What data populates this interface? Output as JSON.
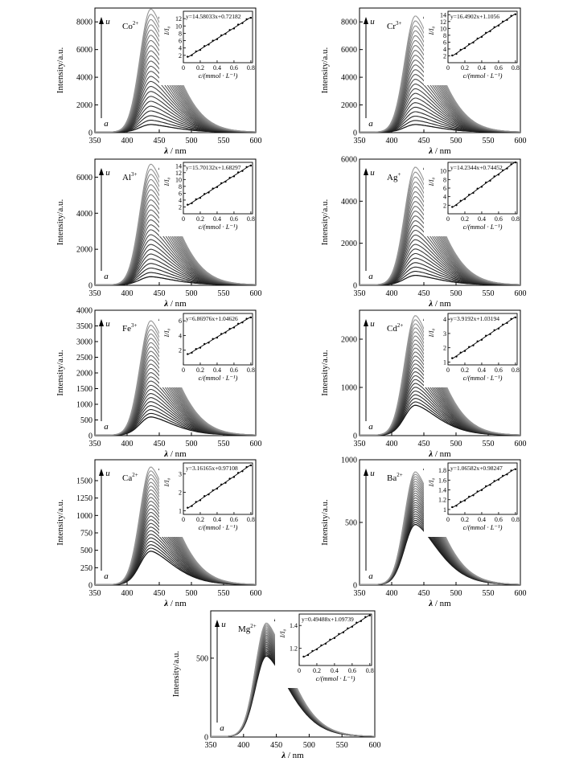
{
  "chart_data": [
    {
      "type": "line",
      "ion": "Co",
      "charge": "2+",
      "xlabel_symbol": "λ",
      "xlabel_unit": "/ nm",
      "ylabel": "Intensity/a.u.",
      "xlim": [
        350,
        600
      ],
      "ylim": [
        0,
        9000
      ],
      "xticks": [
        350,
        400,
        450,
        500,
        550,
        600
      ],
      "yticks": [
        0,
        2000,
        4000,
        6000,
        8000
      ],
      "peak_x": 437,
      "curve_count": 24,
      "first_peak": 550,
      "last_peak": 8900,
      "label_start": "a",
      "label_end": "u",
      "inset": {
        "equation": "y=14.58033x+0.72182",
        "slope": 14.58033,
        "intercept": 0.72182,
        "xlabel": "c/(mmol · L⁻¹)",
        "ylabel": "I/I₀",
        "xlim": [
          0,
          0.82
        ],
        "ylim": [
          0,
          14
        ],
        "xticks": [
          0,
          0.2,
          0.4,
          0.6,
          0.8
        ],
        "yticks": [
          2,
          4,
          6,
          8,
          10,
          12
        ],
        "x": [
          0.05,
          0.1,
          0.15,
          0.2,
          0.25,
          0.3,
          0.35,
          0.4,
          0.45,
          0.5,
          0.55,
          0.6,
          0.65,
          0.7,
          0.75,
          0.8
        ]
      }
    },
    {
      "type": "line",
      "ion": "Cr",
      "charge": "3+",
      "xlabel_symbol": "λ",
      "xlabel_unit": "/ nm",
      "ylabel": "Intensity/a.u.",
      "xlim": [
        350,
        600
      ],
      "ylim": [
        0,
        9000
      ],
      "xticks": [
        350,
        400,
        450,
        500,
        550,
        600
      ],
      "yticks": [
        0,
        2000,
        4000,
        6000,
        8000
      ],
      "peak_x": 437,
      "curve_count": 24,
      "first_peak": 550,
      "last_peak": 8400,
      "label_start": "a",
      "label_end": "u",
      "inset": {
        "equation": "y=16.4902x+1.1056",
        "slope": 16.4902,
        "intercept": 1.1056,
        "xlabel": "c/(mmol · L⁻¹)",
        "ylabel": "I/I₀",
        "xlim": [
          0,
          0.82
        ],
        "ylim": [
          0,
          15
        ],
        "xticks": [
          0,
          0.2,
          0.4,
          0.6,
          0.8
        ],
        "yticks": [
          2,
          4,
          6,
          8,
          10,
          12,
          14
        ],
        "x": [
          0.05,
          0.1,
          0.15,
          0.2,
          0.25,
          0.3,
          0.35,
          0.4,
          0.45,
          0.5,
          0.55,
          0.6,
          0.65,
          0.7,
          0.75,
          0.8
        ]
      }
    },
    {
      "type": "line",
      "ion": "Al",
      "charge": "3+",
      "xlabel_symbol": "λ",
      "xlabel_unit": "/ nm",
      "ylabel": "Intensity/a.u.",
      "xlim": [
        350,
        600
      ],
      "ylim": [
        0,
        7000
      ],
      "xticks": [
        350,
        400,
        450,
        500,
        550,
        600
      ],
      "yticks": [
        0,
        2000,
        4000,
        6000
      ],
      "peak_x": 437,
      "curve_count": 24,
      "first_peak": 450,
      "last_peak": 6700,
      "label_start": "a",
      "label_end": "u",
      "inset": {
        "equation": "y=15.70132x+1.68297",
        "slope": 15.70132,
        "intercept": 1.68297,
        "xlabel": "c/(mmol · L⁻¹)",
        "ylabel": "I/I₀",
        "xlim": [
          0,
          0.82
        ],
        "ylim": [
          0,
          15
        ],
        "xticks": [
          0,
          0.2,
          0.4,
          0.6,
          0.8
        ],
        "yticks": [
          2,
          4,
          6,
          8,
          10,
          12,
          14
        ],
        "x": [
          0.05,
          0.1,
          0.15,
          0.2,
          0.25,
          0.3,
          0.35,
          0.4,
          0.45,
          0.5,
          0.55,
          0.6,
          0.65,
          0.7,
          0.75,
          0.8
        ]
      }
    },
    {
      "type": "line",
      "ion": "Ag",
      "charge": "+",
      "xlabel_symbol": "λ",
      "xlabel_unit": "/ nm",
      "ylabel": "Intensity/a.u.",
      "xlim": [
        350,
        600
      ],
      "ylim": [
        0,
        6000
      ],
      "xticks": [
        350,
        400,
        450,
        500,
        550,
        600
      ],
      "yticks": [
        0,
        2000,
        4000,
        6000
      ],
      "peak_x": 437,
      "curve_count": 24,
      "first_peak": 450,
      "last_peak": 5600,
      "label_start": "a",
      "label_end": "u",
      "inset": {
        "equation": "y=14.2344x+0.74452",
        "slope": 14.2344,
        "intercept": 0.74452,
        "xlabel": "c/(mmol · L⁻¹)",
        "ylabel": "I/I₀",
        "xlim": [
          0,
          0.82
        ],
        "ylim": [
          0,
          12
        ],
        "xticks": [
          0,
          0.2,
          0.4,
          0.6,
          0.8
        ],
        "yticks": [
          2,
          4,
          6,
          8,
          10
        ],
        "x": [
          0.05,
          0.1,
          0.15,
          0.2,
          0.25,
          0.3,
          0.35,
          0.4,
          0.45,
          0.5,
          0.55,
          0.6,
          0.65,
          0.7,
          0.75,
          0.8
        ]
      }
    },
    {
      "type": "line",
      "ion": "Fe",
      "charge": "3+",
      "xlabel_symbol": "λ",
      "xlabel_unit": "/ nm",
      "ylabel": "Intensity/a.u.",
      "xlim": [
        350,
        600
      ],
      "ylim": [
        0,
        4000
      ],
      "xticks": [
        350,
        400,
        450,
        500,
        550,
        600
      ],
      "yticks": [
        0,
        500,
        1000,
        1500,
        2000,
        2500,
        3000,
        3500,
        4000
      ],
      "peak_x": 437,
      "curve_count": 24,
      "first_peak": 580,
      "last_peak": 3650,
      "label_start": "a",
      "label_end": "u",
      "inset": {
        "equation": "y=6.86976x+1.04626",
        "slope": 6.86976,
        "intercept": 1.04626,
        "xlabel": "c/(mmol · L⁻¹)",
        "ylabel": "I/I₀",
        "xlim": [
          0,
          0.82
        ],
        "ylim": [
          0,
          7
        ],
        "xticks": [
          0,
          0.2,
          0.4,
          0.6,
          0.8
        ],
        "yticks": [
          2,
          4,
          6
        ],
        "x": [
          0.05,
          0.1,
          0.15,
          0.2,
          0.25,
          0.3,
          0.35,
          0.4,
          0.45,
          0.5,
          0.55,
          0.6,
          0.65,
          0.7,
          0.75,
          0.8
        ]
      }
    },
    {
      "type": "line",
      "ion": "Cd",
      "charge": "2+",
      "xlabel_symbol": "λ",
      "xlabel_unit": "/ nm",
      "ylabel": "Intensity/a.u.",
      "xlim": [
        350,
        600
      ],
      "ylim": [
        0,
        2600
      ],
      "xticks": [
        350,
        400,
        450,
        500,
        550,
        600
      ],
      "yticks": [
        0,
        1000,
        2000
      ],
      "peak_x": 437,
      "curve_count": 24,
      "first_peak": 620,
      "last_peak": 2480,
      "label_start": "a",
      "label_end": "u",
      "inset": {
        "equation": "y=3.9192x+1.03194",
        "slope": 3.9192,
        "intercept": 1.03194,
        "xlabel": "c/(mmol · L⁻¹)",
        "ylabel": "I/I₀",
        "xlim": [
          0,
          0.82
        ],
        "ylim": [
          0.8,
          4.4
        ],
        "xticks": [
          0,
          0.2,
          0.4,
          0.6,
          0.8
        ],
        "yticks": [
          1,
          2,
          3,
          4
        ],
        "x": [
          0.05,
          0.1,
          0.15,
          0.2,
          0.25,
          0.3,
          0.35,
          0.4,
          0.45,
          0.5,
          0.55,
          0.6,
          0.65,
          0.7,
          0.75,
          0.8
        ]
      }
    },
    {
      "type": "line",
      "ion": "Ca",
      "charge": "2+",
      "xlabel_symbol": "λ",
      "xlabel_unit": "/ nm",
      "ylabel": "Intensity/a.u.",
      "xlim": [
        350,
        600
      ],
      "ylim": [
        0,
        1800
      ],
      "xticks": [
        350,
        400,
        450,
        500,
        550,
        600
      ],
      "yticks": [
        0,
        250,
        500,
        750,
        1000,
        1250,
        1500
      ],
      "peak_x": 437,
      "curve_count": 24,
      "first_peak": 480,
      "last_peak": 1690,
      "label_start": "a",
      "label_end": "u",
      "inset": {
        "equation": "y=3.16165x+0.97108",
        "slope": 3.16165,
        "intercept": 0.97108,
        "xlabel": "c/(mmol · L⁻¹)",
        "ylabel": "I/I₀",
        "xlim": [
          0,
          0.82
        ],
        "ylim": [
          0.8,
          3.6
        ],
        "xticks": [
          0,
          0.2,
          0.4,
          0.6,
          0.8
        ],
        "yticks": [
          1,
          2,
          3
        ],
        "x": [
          0.05,
          0.1,
          0.15,
          0.2,
          0.25,
          0.3,
          0.35,
          0.4,
          0.45,
          0.5,
          0.55,
          0.6,
          0.65,
          0.7,
          0.75,
          0.8
        ]
      }
    },
    {
      "type": "line",
      "ion": "Ba",
      "charge": "2+",
      "xlabel_symbol": "λ",
      "xlabel_unit": "/ nm",
      "ylabel": "Intensity/a.u.",
      "xlim": [
        350,
        600
      ],
      "ylim": [
        0,
        1000
      ],
      "xticks": [
        350,
        400,
        450,
        500,
        550,
        600
      ],
      "yticks": [
        0,
        500,
        1000
      ],
      "peak_x": 437,
      "curve_count": 24,
      "first_peak": 480,
      "last_peak": 900,
      "label_start": "a",
      "label_end": "u",
      "inset": {
        "equation": "y=1.06582x+0.98247",
        "slope": 1.06582,
        "intercept": 0.98247,
        "xlabel": "c/(mmol · L⁻¹)",
        "ylabel": "I/I₀",
        "xlim": [
          0,
          0.82
        ],
        "ylim": [
          0.9,
          1.95
        ],
        "xticks": [
          0,
          0.2,
          0.4,
          0.6,
          0.8
        ],
        "yticks": [
          1.0,
          1.2,
          1.4,
          1.6,
          1.8
        ],
        "x": [
          0.05,
          0.1,
          0.15,
          0.2,
          0.25,
          0.3,
          0.35,
          0.4,
          0.45,
          0.5,
          0.55,
          0.6,
          0.65,
          0.7,
          0.75,
          0.8
        ]
      }
    },
    {
      "type": "line",
      "ion": "Mg",
      "charge": "2+",
      "xlabel_symbol": "λ",
      "xlabel_unit": "/ nm",
      "ylabel": "Intensity/a.u.",
      "xlim": [
        350,
        600
      ],
      "ylim": [
        0,
        800
      ],
      "xticks": [
        350,
        400,
        450,
        500,
        550,
        600
      ],
      "yticks": [
        0,
        500
      ],
      "peak_x": 435,
      "curve_count": 24,
      "first_peak": 510,
      "last_peak": 720,
      "label_start": "a",
      "label_end": "u",
      "inset": {
        "equation": "y=0.49488x+1.09739",
        "slope": 0.49488,
        "intercept": 1.09739,
        "xlabel": "c/(mmol · L⁻¹)",
        "ylabel": "I/I₀",
        "xlim": [
          0,
          0.82
        ],
        "ylim": [
          1.05,
          1.5
        ],
        "xticks": [
          0,
          0.2,
          0.4,
          0.6,
          0.8
        ],
        "yticks": [
          1.2,
          1.4
        ],
        "x": [
          0.05,
          0.1,
          0.15,
          0.2,
          0.25,
          0.3,
          0.35,
          0.4,
          0.45,
          0.5,
          0.55,
          0.6,
          0.65,
          0.7,
          0.75,
          0.8
        ]
      }
    }
  ]
}
